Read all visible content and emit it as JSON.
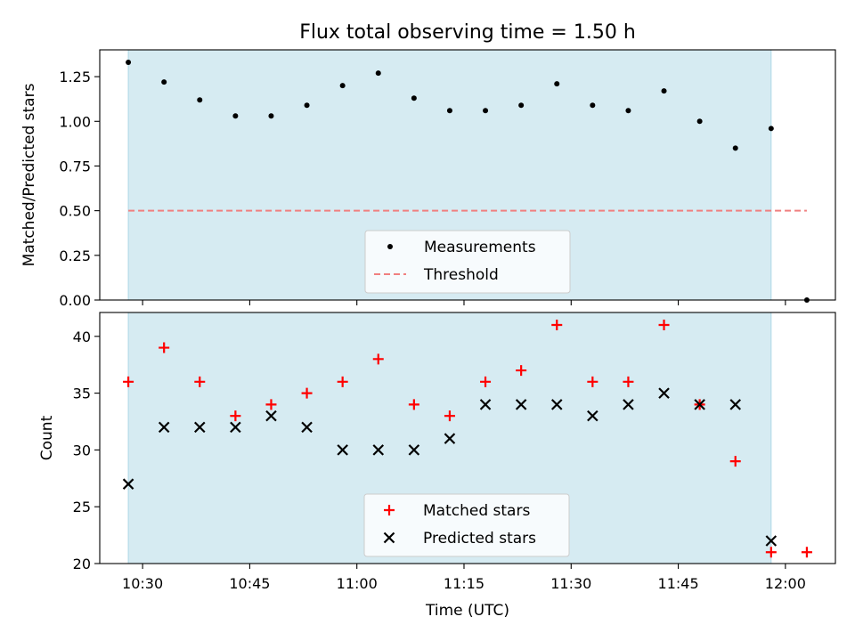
{
  "figure": {
    "title": "Flux total observing time = 1.50 h"
  },
  "chart_data": [
    {
      "type": "scatter",
      "ylabel": "Matched/Predicted stars",
      "xlim": [
        "10:24",
        "12:07"
      ],
      "ylim": [
        0.0,
        1.4
      ],
      "yticks": [
        0.0,
        0.25,
        0.5,
        0.75,
        1.0,
        1.25
      ],
      "ytick_labels": [
        "0.00",
        "0.25",
        "0.50",
        "0.75",
        "1.00",
        "1.25"
      ],
      "x_ticks_only": [
        "10:30",
        "10:45",
        "11:00",
        "11:15",
        "11:30",
        "11:45",
        "12:00"
      ],
      "grid": false,
      "observing_window": [
        "10:28",
        "11:58"
      ],
      "window_color": "#add8e6",
      "series": [
        {
          "name": "Measurements",
          "marker": "dot",
          "color": "#000000",
          "x": [
            "10:28",
            "10:33",
            "10:38",
            "10:43",
            "10:48",
            "10:53",
            "10:58",
            "11:03",
            "11:08",
            "11:13",
            "11:18",
            "11:23",
            "11:28",
            "11:33",
            "11:38",
            "11:43",
            "11:48",
            "11:53",
            "11:58",
            "12:03"
          ],
          "y": [
            1.33,
            1.22,
            1.12,
            1.03,
            1.03,
            1.09,
            1.2,
            1.27,
            1.13,
            1.06,
            1.06,
            1.09,
            1.21,
            1.09,
            1.06,
            1.17,
            1.0,
            0.85,
            0.96,
            0.0
          ]
        },
        {
          "name": "Threshold",
          "marker": "dashed-line",
          "color": "#f08080",
          "x": [
            "10:28",
            "12:03"
          ],
          "y": [
            0.5,
            0.5
          ]
        }
      ],
      "legend": "lower-center"
    },
    {
      "type": "scatter",
      "xlabel": "Time (UTC)",
      "ylabel": "Count",
      "xlim": [
        "10:24",
        "12:07"
      ],
      "ylim": [
        20,
        42.1
      ],
      "yticks": [
        20,
        25,
        30,
        35,
        40
      ],
      "ytick_labels": [
        "20",
        "25",
        "30",
        "35",
        "40"
      ],
      "xticks": [
        "10:30",
        "10:45",
        "11:00",
        "11:15",
        "11:30",
        "11:45",
        "12:00"
      ],
      "grid": false,
      "observing_window": [
        "10:28",
        "11:58"
      ],
      "window_color": "#add8e6",
      "series": [
        {
          "name": "Matched stars",
          "marker": "plus",
          "color": "#ff0000",
          "x": [
            "10:28",
            "10:33",
            "10:38",
            "10:43",
            "10:48",
            "10:53",
            "10:58",
            "11:03",
            "11:08",
            "11:13",
            "11:18",
            "11:23",
            "11:28",
            "11:33",
            "11:38",
            "11:43",
            "11:48",
            "11:53",
            "11:58",
            "12:03"
          ],
          "y": [
            36,
            39,
            36,
            33,
            34,
            35,
            36,
            38,
            34,
            33,
            36,
            37,
            41,
            36,
            36,
            41,
            34,
            29,
            21,
            21
          ]
        },
        {
          "name": "Predicted stars",
          "marker": "x",
          "color": "#000000",
          "x": [
            "10:28",
            "10:33",
            "10:38",
            "10:43",
            "10:48",
            "10:53",
            "10:58",
            "11:03",
            "11:08",
            "11:13",
            "11:18",
            "11:23",
            "11:28",
            "11:33",
            "11:38",
            "11:43",
            "11:48",
            "11:53",
            "11:58"
          ],
          "y": [
            27,
            32,
            32,
            32,
            33,
            32,
            30,
            30,
            30,
            31,
            34,
            34,
            34,
            33,
            34,
            35,
            34,
            34,
            22
          ]
        }
      ],
      "legend": "lower-center"
    }
  ]
}
